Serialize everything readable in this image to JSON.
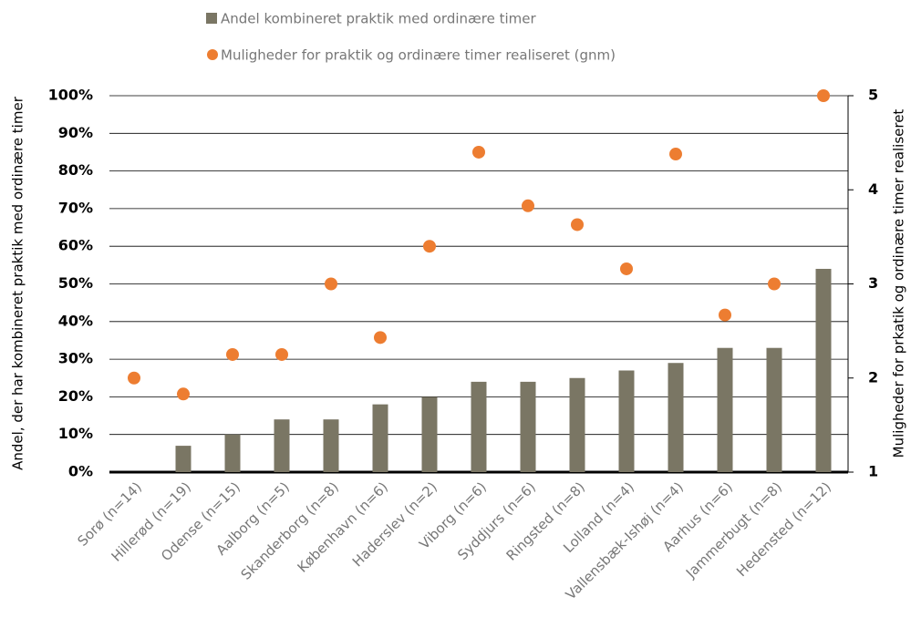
{
  "chart_data": {
    "type": "bar_dot",
    "categories": [
      "Sorø  (n=14)",
      "Hillerød (n=19)",
      "Odense (n=15)",
      "Aalborg  (n=5)",
      "Skanderborg (n=8)",
      "København (n=6)",
      "Haderslev (n=2)",
      "Viborg (n=6)",
      "Syddjurs (n=6)",
      "Ringsted  (n=8)",
      "Lolland (n=4)",
      "Vallensbæk-Ishøj (n=4)",
      "Aarhus (n=6)",
      "Jammerbugt (n=8)",
      "Hedensted (n=12)"
    ],
    "series": [
      {
        "name": "Andel kombineret praktik  med ordinære timer",
        "color": "#7a7664",
        "values": [
          0,
          7,
          10,
          14,
          14,
          18,
          20,
          24,
          24,
          25,
          27,
          29,
          33,
          33,
          54
        ]
      },
      {
        "name": "Muligheder for praktik og ordinære timer realiseret (gnm)",
        "color": "#ed7d31",
        "axis": "y2",
        "values": [
          2.0,
          1.83,
          2.25,
          2.25,
          3.0,
          2.43,
          3.4,
          4.4,
          3.83,
          3.63,
          3.16,
          4.38,
          2.67,
          3.0,
          5.0
        ]
      }
    ],
    "ylabel": "Andel, der har kombineret praktik med ordinære timer",
    "y2label": "Muligheder for prkatik og ordinære timer realiseret",
    "ylim": [
      0,
      100
    ],
    "yticks": [
      {
        "value": 0,
        "label": "0%"
      },
      {
        "value": 10,
        "label": "10%"
      },
      {
        "value": 20,
        "label": "20%"
      },
      {
        "value": 30,
        "label": "30%"
      },
      {
        "value": 40,
        "label": "40%"
      },
      {
        "value": 50,
        "label": "50%"
      },
      {
        "value": 60,
        "label": "60%"
      },
      {
        "value": 70,
        "label": "70%"
      },
      {
        "value": 80,
        "label": "80%"
      },
      {
        "value": 90,
        "label": "90%"
      },
      {
        "value": 100,
        "label": "100%"
      }
    ],
    "y2lim": [
      1,
      5
    ],
    "y2ticks": [
      1,
      2,
      3,
      4,
      5
    ],
    "grid": true
  }
}
